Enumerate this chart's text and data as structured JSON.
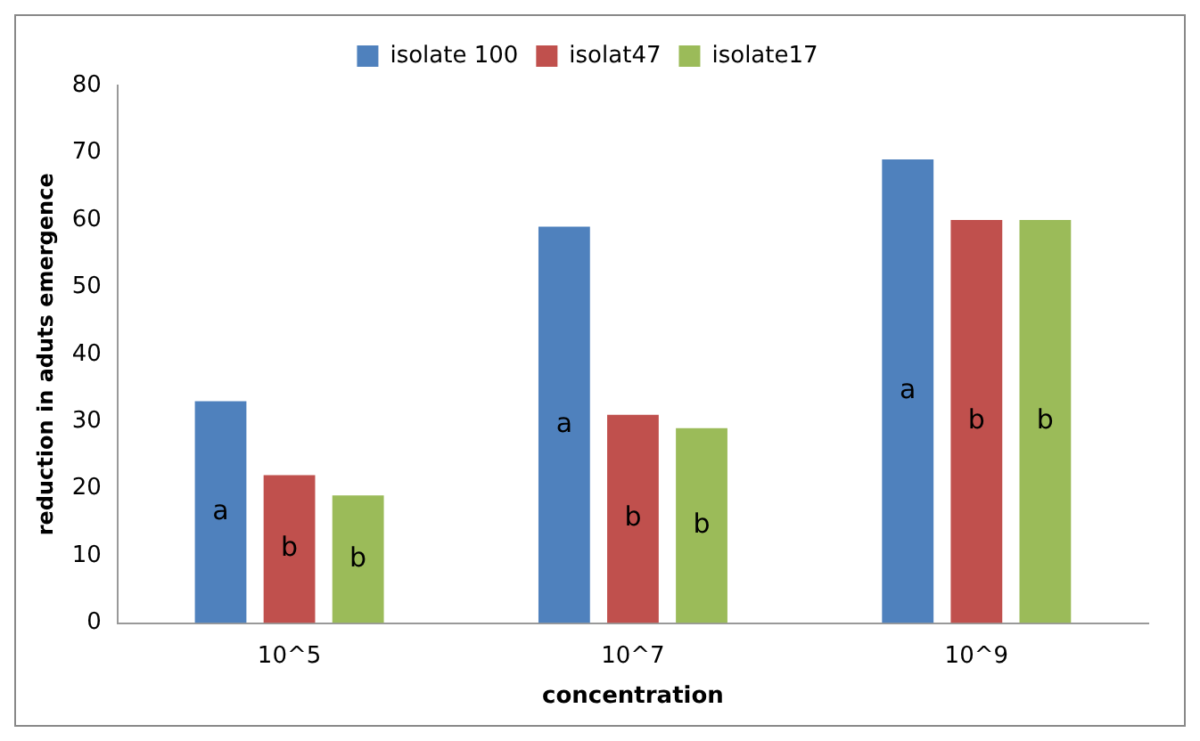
{
  "chart_data": {
    "type": "bar",
    "xlabel": "concentration",
    "ylabel": "reduction in aduts emergence",
    "categories": [
      "10^5",
      "10^7",
      "10^9"
    ],
    "series": [
      {
        "name": "isolate 100",
        "color": "#4f81bd",
        "values": [
          33,
          59,
          69
        ],
        "value_labels": [
          "a",
          "a",
          "a"
        ]
      },
      {
        "name": "isolat47",
        "color": "#c0504d",
        "values": [
          22,
          31,
          60
        ],
        "value_labels": [
          "b",
          "b",
          "b"
        ]
      },
      {
        "name": "isolate17",
        "color": "#9bbb59",
        "values": [
          19,
          29,
          60
        ],
        "value_labels": [
          "b",
          "b",
          "b"
        ]
      }
    ],
    "ylim": [
      0,
      80
    ],
    "yticks": [
      0,
      10,
      20,
      30,
      40,
      50,
      60,
      70,
      80
    ],
    "grid": false,
    "legend": "top"
  }
}
